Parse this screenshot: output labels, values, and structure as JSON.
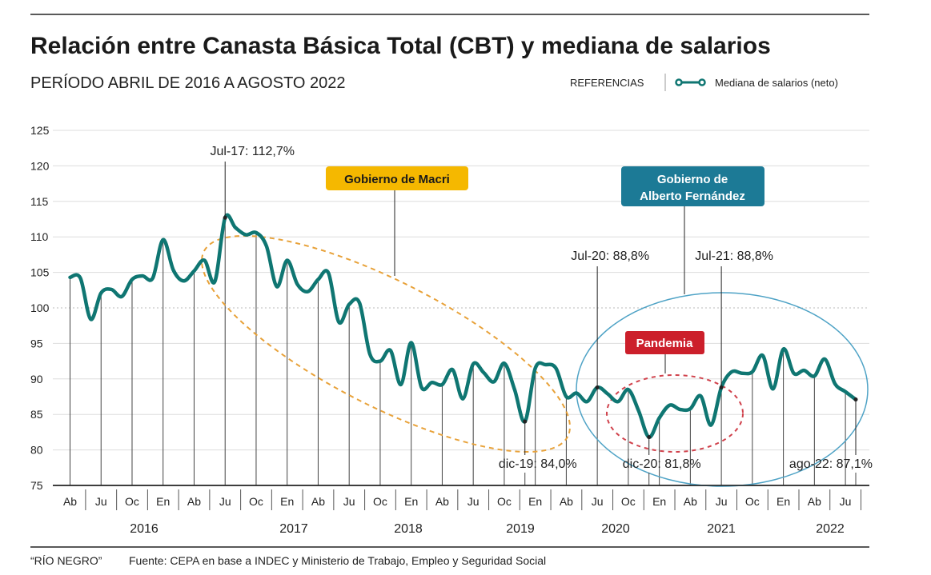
{
  "header": {
    "title": "Relación entre Canasta Básica Total (CBT) y mediana de salarios",
    "subtitle": "PERÍODO ABRIL DE 2016 A AGOSTO 2022",
    "legend_label": "REFERENCIAS",
    "legend_series": "Mediana de salarios (neto)"
  },
  "footer": {
    "credit": "“RÍO NEGRO”",
    "source": "Fuente: CEPA en base a INDEC y Ministerio de Trabajo, Empleo y Seguridad Social"
  },
  "chart_data": {
    "type": "line",
    "title": "Relación entre Canasta Básica Total (CBT) y mediana de salarios",
    "subtitle": "PERÍODO ABRIL DE 2016 A AGOSTO 2022",
    "xlabel": "",
    "ylabel": "",
    "ylim": [
      75,
      125
    ],
    "yticks": [
      "75",
      "80",
      "85",
      "90",
      "95",
      "100",
      "105",
      "110",
      "115",
      "120",
      "125"
    ],
    "reference_line": 100,
    "grid": true,
    "legend": {
      "label": "Mediana de salarios (neto)",
      "placement": "top-right"
    },
    "x_start": "Abr 2016",
    "x_end": "Ago 2022",
    "quarter_labels": [
      "Ab",
      "Ju",
      "Oc",
      "En",
      "Ab",
      "Ju",
      "Oc",
      "En",
      "Ab",
      "Ju",
      "Oc",
      "En",
      "Ab",
      "Ju",
      "Oc",
      "En",
      "Ab",
      "Ju",
      "Oc",
      "En",
      "Ab",
      "Ju",
      "Oc",
      "En",
      "Ab",
      "Ju"
    ],
    "years": [
      "2016",
      "2017",
      "2018",
      "2019",
      "2020",
      "2021",
      "2022"
    ],
    "series": [
      {
        "name": "Mediana de salarios (neto)",
        "color": "#0f7672",
        "values": [
          104.3,
          104.2,
          98.4,
          102.1,
          102.6,
          101.6,
          104.0,
          104.5,
          104.2,
          109.6,
          105.3,
          103.8,
          105.2,
          106.7,
          103.7,
          112.7,
          111.3,
          110.3,
          110.6,
          108.7,
          103.0,
          106.7,
          103.3,
          102.3,
          104.0,
          104.9,
          98.0,
          100.5,
          100.7,
          93.5,
          92.5,
          94.0,
          89.2,
          95.1,
          88.8,
          89.5,
          89.2,
          91.3,
          87.2,
          92.1,
          90.9,
          89.6,
          92.2,
          88.5,
          84.0,
          91.5,
          92.0,
          91.5,
          87.5,
          88.0,
          86.8,
          88.8,
          87.9,
          86.8,
          88.5,
          85.5,
          81.8,
          84.5,
          86.3,
          85.7,
          85.8,
          87.6,
          83.5,
          88.8,
          91.0,
          90.8,
          91.0,
          93.3,
          88.6,
          94.2,
          90.8,
          91.2,
          90.4,
          92.8,
          89.3,
          88.2,
          87.1
        ]
      }
    ],
    "annotations": [
      {
        "text": "Jul-17: 112,7%",
        "index": 15
      },
      {
        "text": "dic-19: 84,0%",
        "index": 44
      },
      {
        "text": "Jul-20: 88,8%",
        "index": 51
      },
      {
        "text": "dic-20: 81,8%",
        "index": 56
      },
      {
        "text": "Jul-21: 88,8%",
        "index": 63
      },
      {
        "text": "ago-22: 87,1%",
        "index": 76
      }
    ],
    "periods": [
      {
        "label": "Gobierno de Macri",
        "color": "#f5b800"
      },
      {
        "label_line1": "Gobierno de",
        "label_line2": "Alberto Fernández",
        "color": "#1c7a96"
      },
      {
        "label": "Pandemia",
        "color": "#cc1f2b"
      }
    ]
  }
}
